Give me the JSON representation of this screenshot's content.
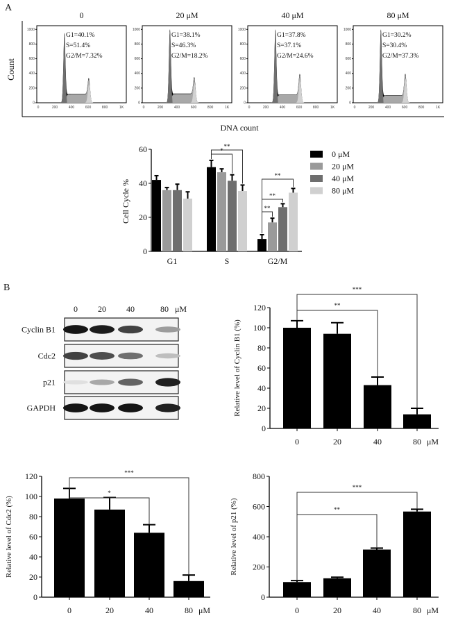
{
  "panel_labels": {
    "a": "A",
    "b": "B"
  },
  "chart_data": [
    {
      "type": "area",
      "kind": "flow-cytometry-histograms",
      "ylabel": "Count",
      "xlabel": "DNA count",
      "x_ticks": [
        "0",
        "200",
        "400",
        "600",
        "800",
        "1K"
      ],
      "y_ticks": [
        "0",
        "200",
        "400",
        "600",
        "800",
        "1000"
      ],
      "ylim": [
        0,
        1000
      ],
      "xlim": [
        0,
        1024
      ],
      "colors": {
        "G1": "#707070",
        "S": "#a8a8a8",
        "G2M": "#d2d2d2",
        "outline": "#000000"
      },
      "panels": [
        {
          "title": "0",
          "g1": "G1=40.1%",
          "s": "S=51.4%",
          "g2m": "G2/M=7.32%"
        },
        {
          "title": "20 μM",
          "g1": "G1=38.1%",
          "s": "S=46.3%",
          "g2m": "G2/M=18.2%"
        },
        {
          "title": "40 μM",
          "g1": "G1=37.8%",
          "s": "S=37.1%",
          "g2m": "G2/M=24.6%"
        },
        {
          "title": "80 μM",
          "g1": "G1=30.2%",
          "s": "S=30.4%",
          "g2m": "G2/M=37.3%"
        }
      ]
    },
    {
      "type": "bar",
      "ylabel": "Cell Cycle %",
      "categories": [
        "G1",
        "S",
        "G2/M"
      ],
      "ylim": [
        0,
        60
      ],
      "y_ticks": [
        "0",
        "20",
        "40",
        "60"
      ],
      "legend": "right",
      "series": [
        {
          "name": "0 μM",
          "color": "#000000",
          "values": [
            42,
            49.5,
            7.3
          ],
          "errors": [
            2.5,
            4,
            2.5
          ]
        },
        {
          "name": "20 μM",
          "color": "#9a9a9a",
          "values": [
            36,
            46.5,
            17
          ],
          "errors": [
            1.5,
            2,
            2.5
          ]
        },
        {
          "name": "40 μM",
          "color": "#6e6e6e",
          "values": [
            36,
            41.5,
            26
          ],
          "errors": [
            3.5,
            3.5,
            2
          ]
        },
        {
          "name": "80 μM",
          "color": "#d0d0d0",
          "values": [
            31,
            35.5,
            34.5
          ],
          "errors": [
            4,
            3.5,
            2.5
          ]
        }
      ],
      "significance": [
        {
          "category": "S",
          "from": 0,
          "to": 3,
          "label": "**"
        },
        {
          "category": "S",
          "from": 0,
          "to": 2,
          "label": "*"
        },
        {
          "category": "G2/M",
          "from": 0,
          "to": 3,
          "label": "**"
        },
        {
          "category": "G2/M",
          "from": 0,
          "to": 2,
          "label": "**"
        },
        {
          "category": "G2/M",
          "from": 0,
          "to": 1,
          "label": "**"
        }
      ]
    },
    {
      "type": "bar",
      "ylabel": "Relative level of Cyclin B1 (%)",
      "categories": [
        "0",
        "20",
        "40",
        "80"
      ],
      "unit": "μM",
      "values": [
        100,
        94,
        43,
        14
      ],
      "errors": [
        7,
        11,
        8,
        6
      ],
      "ylim": [
        0,
        120
      ],
      "y_ticks": [
        "0",
        "20",
        "40",
        "60",
        "80",
        "100",
        "120"
      ],
      "color": "#000000",
      "significance": [
        {
          "from": 0,
          "to": 3,
          "label": "***"
        },
        {
          "from": 0,
          "to": 2,
          "label": "**"
        }
      ]
    },
    {
      "type": "bar",
      "ylabel": "Relative level of Cdc2 (%)",
      "categories": [
        "0",
        "20",
        "40",
        "80"
      ],
      "unit": "μM",
      "values": [
        98,
        87,
        64,
        16
      ],
      "errors": [
        10,
        12,
        8,
        6
      ],
      "ylim": [
        0,
        120
      ],
      "y_ticks": [
        "0",
        "20",
        "40",
        "60",
        "80",
        "100",
        "120"
      ],
      "color": "#000000",
      "significance": [
        {
          "from": 0,
          "to": 3,
          "label": "***"
        },
        {
          "from": 0,
          "to": 2,
          "label": "*"
        }
      ]
    },
    {
      "type": "bar",
      "ylabel": "Relative level of p21 (%)",
      "categories": [
        "0",
        "20",
        "40",
        "80"
      ],
      "unit": "μM",
      "values": [
        100,
        125,
        315,
        567
      ],
      "errors": [
        10,
        7,
        10,
        15
      ],
      "ylim": [
        0,
        800
      ],
      "y_ticks": [
        "0",
        "200",
        "400",
        "600",
        "800"
      ],
      "color": "#000000",
      "significance": [
        {
          "from": 0,
          "to": 3,
          "label": "***"
        },
        {
          "from": 0,
          "to": 2,
          "label": "**"
        }
      ]
    }
  ],
  "western_blot": {
    "lanes": [
      "0",
      "20",
      "40",
      "80"
    ],
    "unit": "μM",
    "rows": [
      {
        "label": "Cyclin B1",
        "intensities": [
          0.95,
          0.92,
          0.75,
          0.35
        ]
      },
      {
        "label": "Cdc2",
        "intensities": [
          0.75,
          0.7,
          0.55,
          0.2
        ]
      },
      {
        "label": "p21",
        "intensities": [
          0.05,
          0.3,
          0.6,
          0.9
        ]
      },
      {
        "label": "GAPDH",
        "intensities": [
          0.95,
          0.95,
          0.95,
          0.9
        ]
      }
    ]
  }
}
